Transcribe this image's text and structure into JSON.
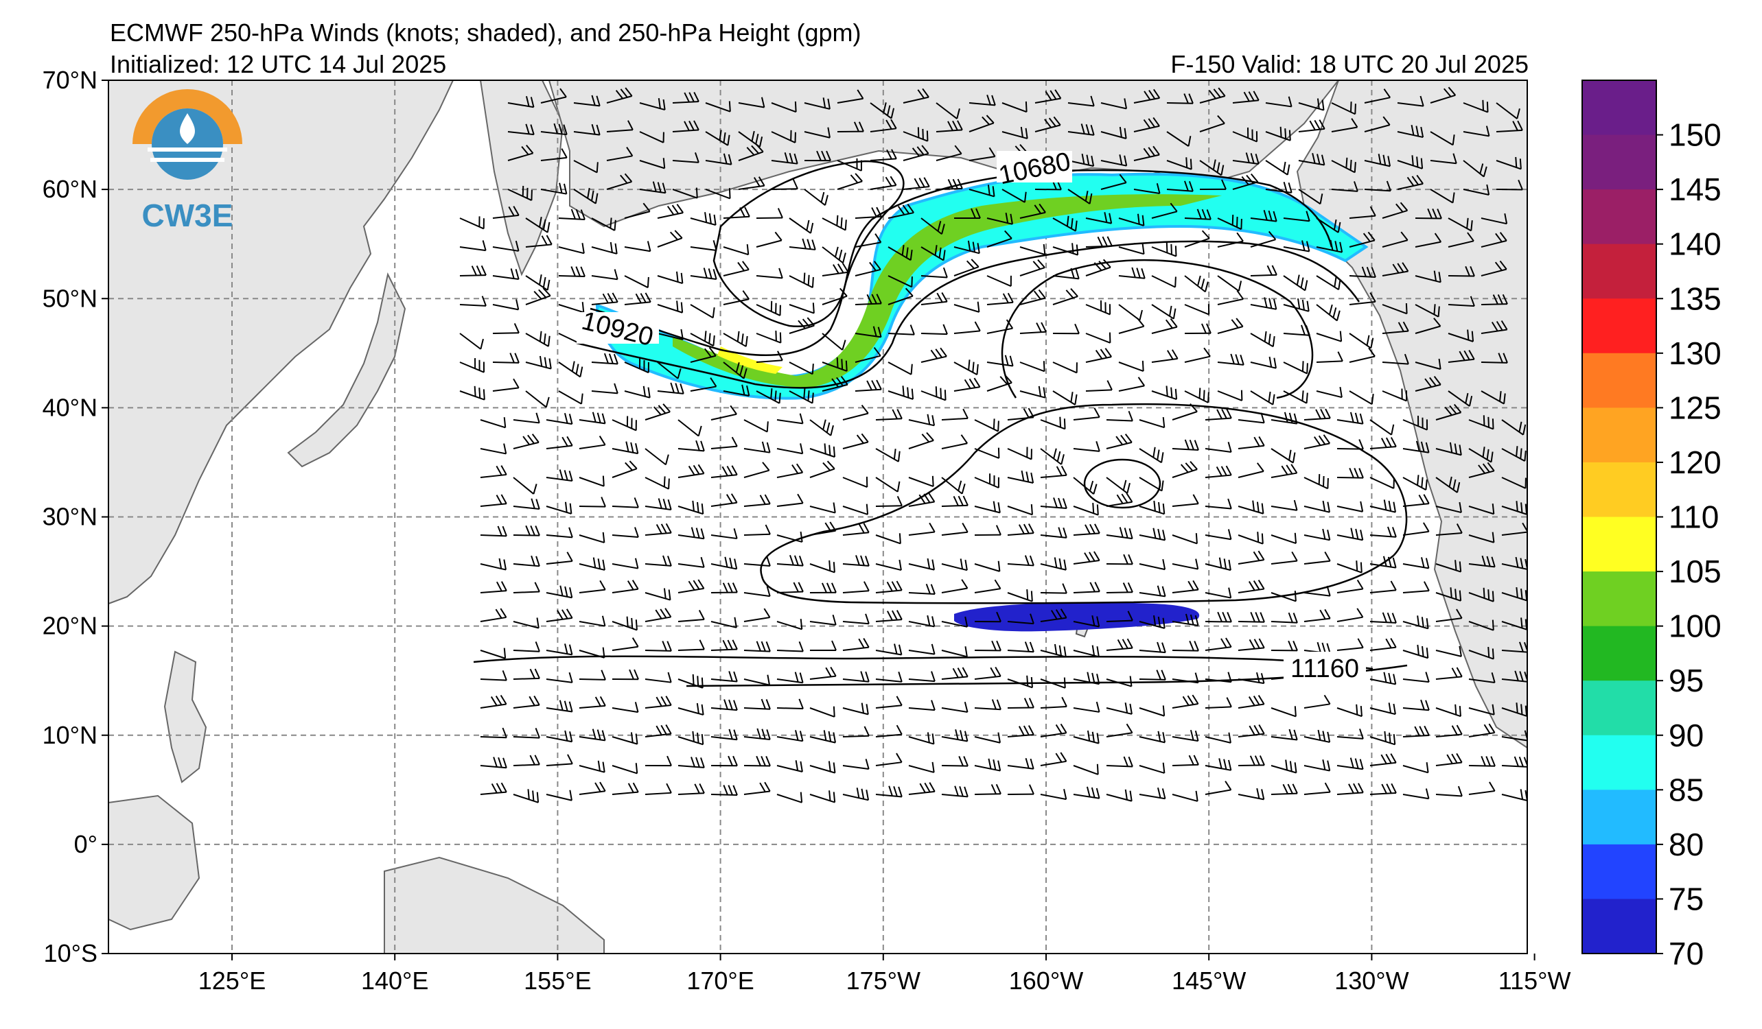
{
  "header": {
    "title": "ECMWF 250-hPa Winds (knots; shaded), and 250-hPa Height (gpm)",
    "initialized": "Initialized: 12 UTC 14 Jul 2025",
    "valid": "F-150  Valid: 18 UTC 20 Jul 2025"
  },
  "logo": {
    "text": "CW3E",
    "color": "#3a8fc2",
    "accent": "#f29a2e"
  },
  "map": {
    "lon_labels": [
      "125°E",
      "140°E",
      "155°E",
      "170°E",
      "175°W",
      "160°W",
      "145°W",
      "130°W",
      "115°W"
    ],
    "lat_labels": [
      "70°N",
      "60°N",
      "50°N",
      "40°N",
      "30°N",
      "20°N",
      "10°N",
      "0°",
      "10°S"
    ],
    "contour_labels": [
      "10680",
      "10920",
      "11160"
    ],
    "land_color": "#e6e6e6"
  },
  "colorbar": {
    "labels": [
      "150",
      "145",
      "140",
      "135",
      "130",
      "125",
      "120",
      "110",
      "105",
      "100",
      "95",
      "90",
      "85",
      "80",
      "75",
      "70"
    ],
    "colors": [
      "#6a1e8a",
      "#7a1f7e",
      "#9b1f66",
      "#c4203c",
      "#ff2020",
      "#ff7a22",
      "#ffa422",
      "#ffcc22",
      "#ffff22",
      "#6fd022",
      "#22b822",
      "#22dda8",
      "#22fff0",
      "#22bbff",
      "#2244ff",
      "#2222cc"
    ]
  }
}
